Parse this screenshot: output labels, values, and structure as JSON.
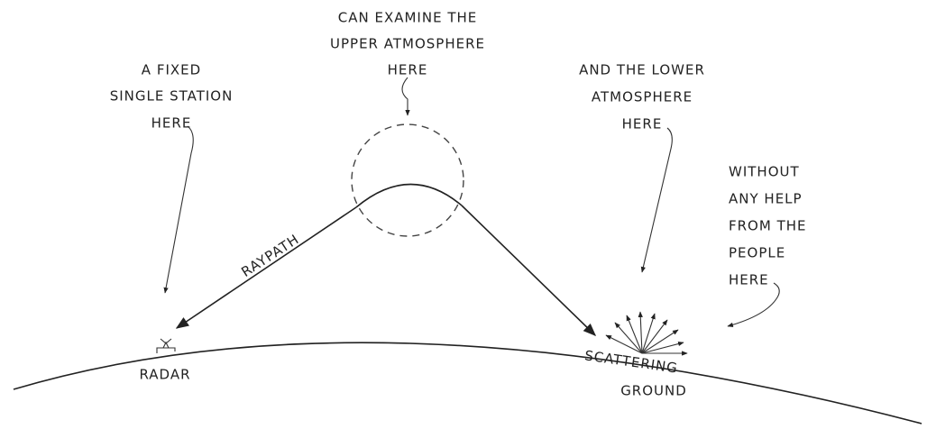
{
  "annotations": {
    "upper": {
      "lines": [
        "CAN EXAMINE THE",
        "UPPER ATMOSPHERE",
        "HERE"
      ]
    },
    "station": {
      "lines": [
        "A FIXED",
        "SINGLE STATION",
        "HERE"
      ]
    },
    "lower": {
      "lines": [
        "AND THE LOWER",
        "ATMOSPHERE",
        "HERE"
      ]
    },
    "people": {
      "lines": [
        "WITHOUT",
        "ANY HELP",
        "FROM THE",
        "PEOPLE",
        "HERE"
      ]
    }
  },
  "labels": {
    "raypath": "RAYPATH",
    "radar": "RADAR",
    "scattering": [
      "SCATTERING",
      "GROUND"
    ]
  }
}
